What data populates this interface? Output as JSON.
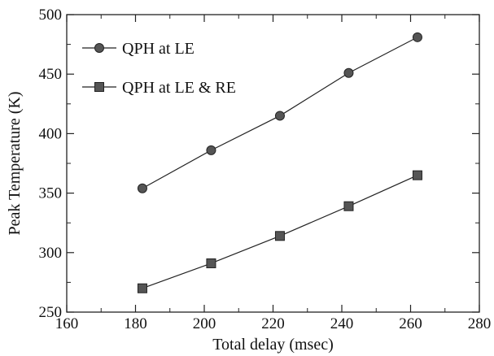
{
  "chart_data": {
    "type": "line",
    "xlabel": "Total delay (msec)",
    "ylabel": "Peak Temperature (K)",
    "xlim": [
      160,
      280
    ],
    "ylim": [
      250,
      500
    ],
    "xticks": [
      160,
      180,
      200,
      220,
      240,
      260,
      280
    ],
    "yticks": [
      250,
      300,
      350,
      400,
      450,
      500
    ],
    "grid": false,
    "legend_position": "top-left",
    "x": [
      182,
      202,
      222,
      242,
      262
    ],
    "series": [
      {
        "name": "QPH at LE",
        "marker": "circle",
        "color": "#555555",
        "values": [
          354,
          386,
          415,
          451,
          481
        ]
      },
      {
        "name": "QPH at LE & RE",
        "marker": "square",
        "color": "#555555",
        "values": [
          270,
          291,
          314,
          339,
          365
        ]
      }
    ]
  }
}
